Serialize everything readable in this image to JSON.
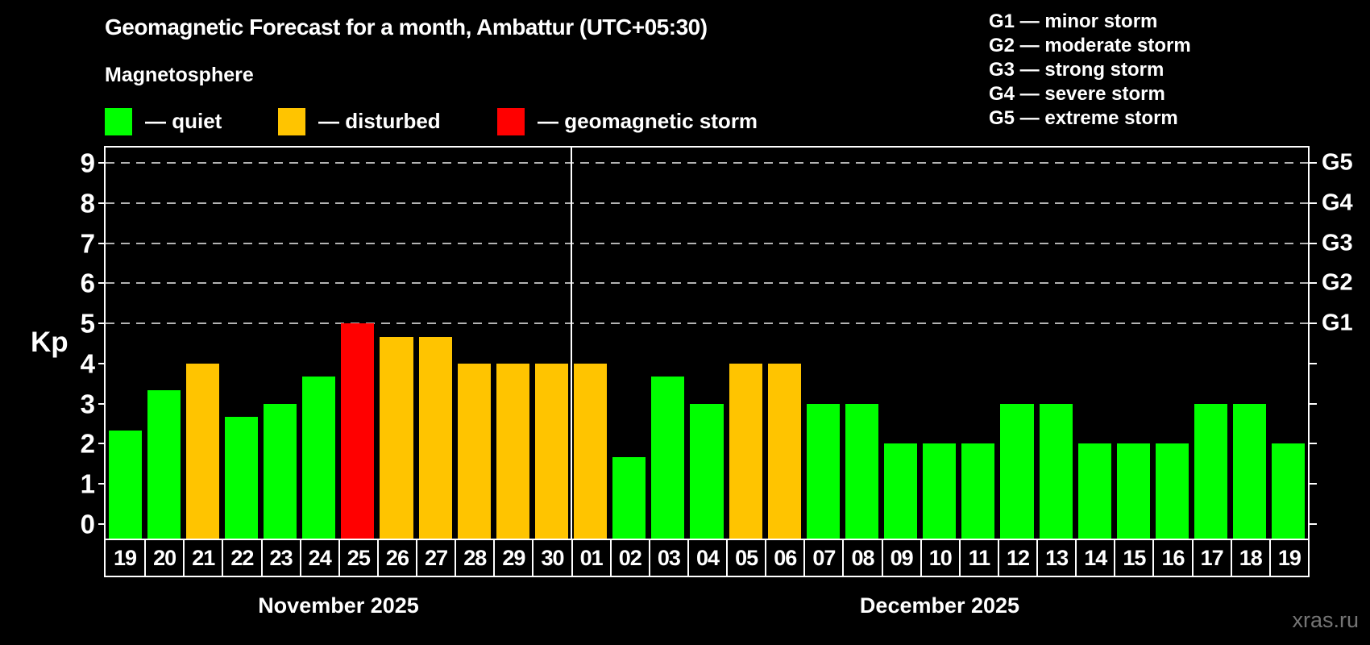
{
  "header": {
    "title": "Geomagnetic Forecast for a month, Ambattur (UTC+05:30)",
    "subtitle": "Magnetosphere"
  },
  "legend": {
    "items": [
      {
        "key": "quiet",
        "label": "— quiet"
      },
      {
        "key": "disturbed",
        "label": "— disturbed"
      },
      {
        "key": "storm",
        "label": "— geomagnetic storm"
      }
    ]
  },
  "g_legend": [
    "G1 — minor storm",
    "G2 — moderate storm",
    "G3 — strong storm",
    "G4 — severe storm",
    "G5 — extreme storm"
  ],
  "watermark": "xras.ru",
  "chart_data": {
    "type": "bar",
    "title": "Geomagnetic Forecast for a month, Ambattur (UTC+05:30)",
    "xlabel": "",
    "ylabel": "Kp",
    "ylim": [
      -0.36,
      9.38
    ],
    "yticks": [
      0,
      1,
      2,
      3,
      4,
      5,
      6,
      7,
      8,
      9
    ],
    "gridlines_at": [
      5,
      6,
      7,
      8,
      9
    ],
    "grid": "dashed-horizontal",
    "right_axis": [
      {
        "kp": 5,
        "label": "G1"
      },
      {
        "kp": 6,
        "label": "G2"
      },
      {
        "kp": 7,
        "label": "G3"
      },
      {
        "kp": 8,
        "label": "G4"
      },
      {
        "kp": 9,
        "label": "G5"
      }
    ],
    "colors": {
      "quiet": "#00ff00",
      "disturbed": "#ffc400",
      "storm": "#ff0000"
    },
    "color_rules": {
      "disturbed_min": 4,
      "storm_min": 5
    },
    "months": [
      {
        "label": "November 2025",
        "days": [
          "19",
          "20",
          "21",
          "22",
          "23",
          "24",
          "25",
          "26",
          "27",
          "28",
          "29",
          "30"
        ],
        "values": [
          2.33,
          3.33,
          4,
          2.67,
          3,
          3.67,
          5,
          4.67,
          4.67,
          4,
          4,
          4
        ]
      },
      {
        "label": "December 2025",
        "days": [
          "01",
          "02",
          "03",
          "04",
          "05",
          "06",
          "07",
          "08",
          "09",
          "10",
          "11",
          "12",
          "13",
          "14",
          "15",
          "16",
          "17",
          "18",
          "19"
        ],
        "values": [
          4,
          1.67,
          3.67,
          3,
          4,
          4,
          3,
          3,
          2,
          2,
          2,
          3,
          3,
          2,
          2,
          2,
          3,
          3,
          2
        ]
      }
    ]
  }
}
